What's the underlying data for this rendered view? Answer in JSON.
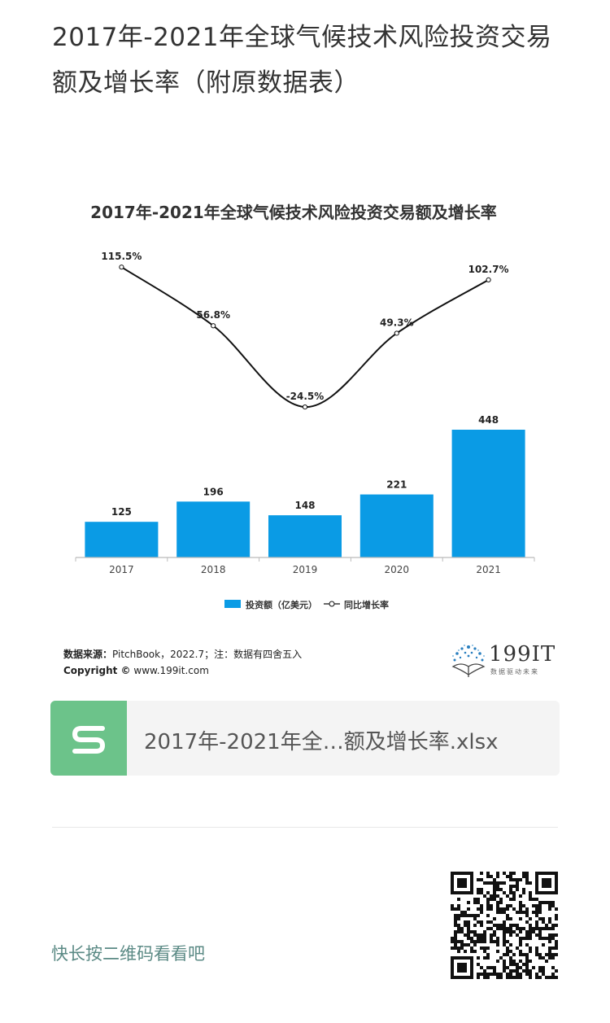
{
  "article": {
    "title": "2017年-2021年全球气候技术风险投资交易额及增长率（附原数据表）"
  },
  "chart_data": {
    "type": "bar",
    "title": "2017年-2021年全球气候技术风险投资交易额及增长率",
    "categories": [
      "2017",
      "2018",
      "2019",
      "2020",
      "2021"
    ],
    "series": [
      {
        "name": "投资额（亿美元）",
        "type": "bar",
        "values": [
          125,
          196,
          148,
          221,
          448
        ],
        "labels": [
          "125",
          "196",
          "148",
          "221",
          "448"
        ],
        "color": "#0a9be5"
      },
      {
        "name": "同比增长率",
        "type": "line",
        "values": [
          115.5,
          56.8,
          -24.5,
          49.3,
          102.7
        ],
        "labels": [
          "115.5%",
          "56.8%",
          "-24.5%",
          "49.3%",
          "102.7%"
        ],
        "color": "#111111"
      }
    ],
    "legend_position": "bottom",
    "grid": false
  },
  "source": {
    "label": "数据来源：",
    "text": "PitchBook，2022.7；注：数据有四舍五入",
    "copyright_label": "Copyright ©",
    "copyright_site": "www.199it.com"
  },
  "logo": {
    "text": "199IT",
    "subtitle": "数据驱动未来"
  },
  "file": {
    "name": "2017年-2021年全…额及增长率.xlsx",
    "icon": "spreadsheet-s-icon",
    "icon_color": "#6cc38a"
  },
  "footer": {
    "qr_hint": "快长按二维码看看吧",
    "qr_icon": "qr-code"
  }
}
